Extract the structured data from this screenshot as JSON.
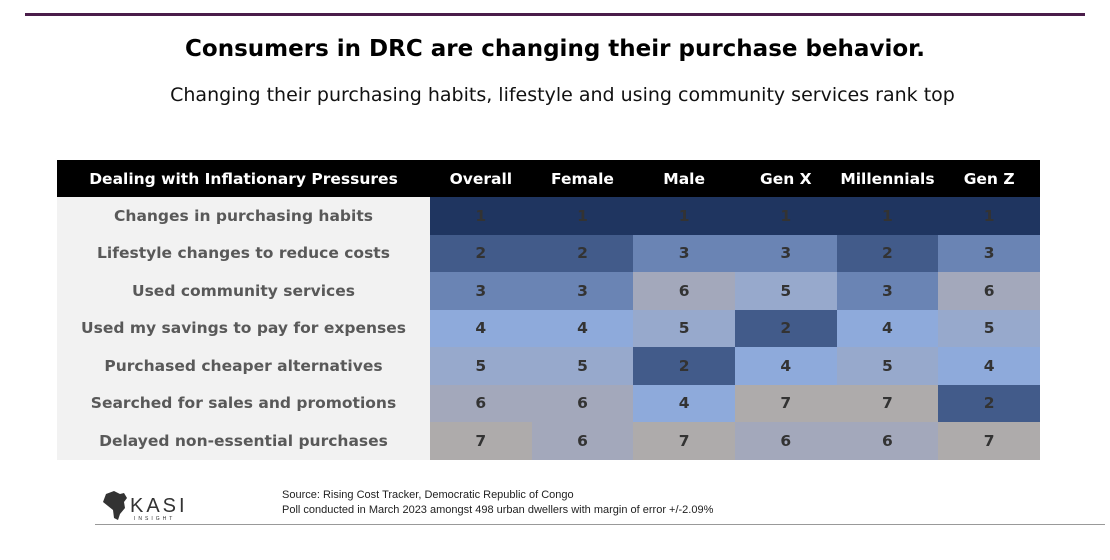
{
  "title": "Consumers in DRC are changing their purchase behavior.",
  "subtitle": "Changing their purchasing habits, lifestyle and using community services rank top",
  "chart_data": {
    "type": "table",
    "columns": [
      "Dealing with Inflationary Pressures",
      "Overall",
      "Female",
      "Male",
      "Gen X",
      "Millennials",
      "Gen Z"
    ],
    "rows": [
      {
        "label": "Changes in purchasing habits",
        "values": [
          1,
          1,
          1,
          1,
          1,
          1
        ]
      },
      {
        "label": "Lifestyle changes to reduce costs",
        "values": [
          2,
          2,
          3,
          3,
          2,
          3
        ]
      },
      {
        "label": "Used community services",
        "values": [
          3,
          3,
          6,
          5,
          3,
          6
        ]
      },
      {
        "label": "Used my savings to pay for expenses",
        "values": [
          4,
          4,
          5,
          2,
          4,
          5
        ]
      },
      {
        "label": "Purchased cheaper alternatives",
        "values": [
          5,
          5,
          2,
          4,
          5,
          4
        ]
      },
      {
        "label": "Searched for sales and promotions",
        "values": [
          6,
          6,
          4,
          7,
          7,
          2
        ]
      },
      {
        "label": "Delayed non-essential purchases",
        "values": [
          7,
          6,
          7,
          6,
          6,
          7
        ]
      }
    ],
    "rank_colors": {
      "1": "#1f3560",
      "2": "#425b8a",
      "3": "#6a84b4",
      "4": "#8eaadb",
      "5": "#97a9cc",
      "6": "#a3a8bb",
      "7": "#aeabab"
    }
  },
  "logo": {
    "text": "KASI INSIGHT"
  },
  "source": {
    "line1": "Source: Rising Cost Tracker,  Democratic Republic of Congo",
    "line2": "Poll conducted in March 2023 amongst 498 urban dwellers with margin of error +/-2.09%"
  }
}
